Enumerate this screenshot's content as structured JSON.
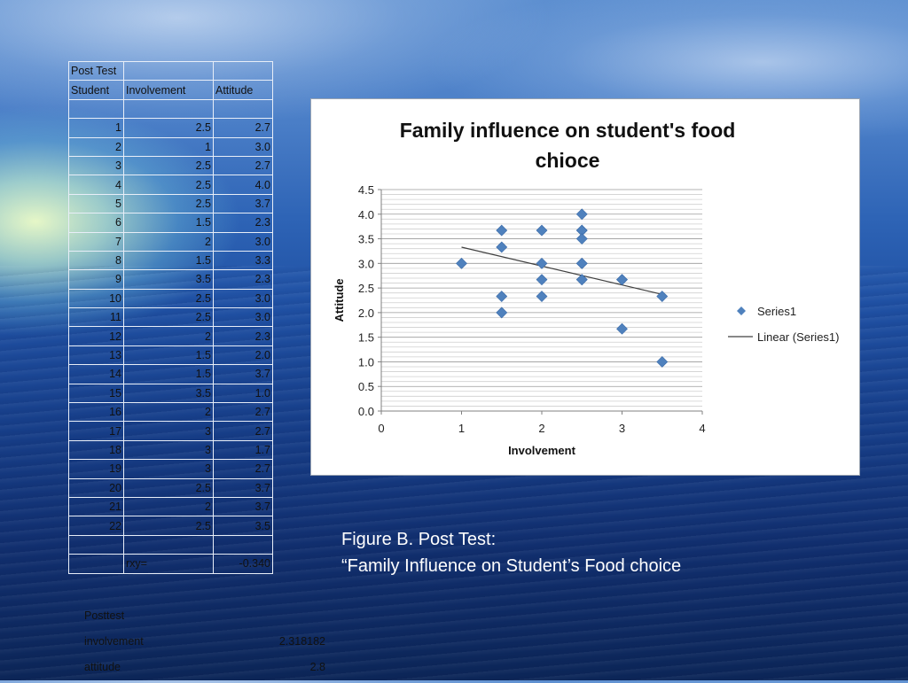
{
  "table": {
    "title": "Post Test",
    "headers": [
      "Student",
      "Involvement",
      "Attitude"
    ],
    "rows": [
      [
        "1",
        "2.5",
        "2.7"
      ],
      [
        "2",
        "1",
        "3.0"
      ],
      [
        "3",
        "2.5",
        "2.7"
      ],
      [
        "4",
        "2.5",
        "4.0"
      ],
      [
        "5",
        "2.5",
        "3.7"
      ],
      [
        "6",
        "1.5",
        "2.3"
      ],
      [
        "7",
        "2",
        "3.0"
      ],
      [
        "8",
        "1.5",
        "3.3"
      ],
      [
        "9",
        "3.5",
        "2.3"
      ],
      [
        "10",
        "2.5",
        "3.0"
      ],
      [
        "11",
        "2.5",
        "3.0"
      ],
      [
        "12",
        "2",
        "2.3"
      ],
      [
        "13",
        "1.5",
        "2.0"
      ],
      [
        "14",
        "1.5",
        "3.7"
      ],
      [
        "15",
        "3.5",
        "1.0"
      ],
      [
        "16",
        "2",
        "2.7"
      ],
      [
        "17",
        "3",
        "2.7"
      ],
      [
        "18",
        "3",
        "1.7"
      ],
      [
        "19",
        "3",
        "2.7"
      ],
      [
        "20",
        "2.5",
        "3.7"
      ],
      [
        "21",
        "2",
        "3.7"
      ],
      [
        "22",
        "2.5",
        "3.5"
      ]
    ],
    "rxy_label": "rxy=",
    "rxy_value": "-0.340"
  },
  "caption": {
    "line1": "Figure B. Post Test:",
    "line2": "“Family Influence on Student’s Food choice"
  },
  "summary": {
    "title": "Posttest",
    "rows": [
      {
        "label": "involvement",
        "value": "2.318182"
      },
      {
        "label": "attitude",
        "value": "2.8"
      }
    ]
  },
  "chart_data": {
    "type": "scatter",
    "title_lines": [
      "Family influence on student's food",
      "chioce"
    ],
    "xlabel": "Involvement",
    "ylabel": "Attitude",
    "xlim": [
      0,
      4
    ],
    "ylim": [
      0,
      4.5
    ],
    "x_ticks": [
      "0",
      "1",
      "2",
      "3",
      "4"
    ],
    "y_ticks": [
      "0.0",
      "0.5",
      "1.0",
      "1.5",
      "2.0",
      "2.5",
      "3.0",
      "3.5",
      "4.0",
      "4.5"
    ],
    "grid": true,
    "legend_position": "right",
    "series": [
      {
        "name": "Series1",
        "color": "#4f81bd",
        "marker": "diamond",
        "x": [
          2.5,
          1,
          2.5,
          2.5,
          2.5,
          1.5,
          2,
          1.5,
          3.5,
          2.5,
          2.5,
          2,
          1.5,
          1.5,
          3.5,
          2,
          3,
          3,
          3,
          2.5,
          2,
          2.5
        ],
        "y": [
          2.67,
          3.0,
          2.67,
          4.0,
          3.67,
          2.33,
          3.0,
          3.33,
          2.33,
          3.0,
          3.0,
          2.33,
          2.0,
          3.67,
          1.0,
          2.67,
          2.67,
          1.67,
          2.67,
          3.67,
          3.67,
          3.5
        ]
      }
    ],
    "trendline": {
      "name": "Linear (Series1)",
      "color": "#404040",
      "x": [
        1,
        3.5
      ],
      "y": [
        3.33,
        2.37
      ]
    }
  }
}
